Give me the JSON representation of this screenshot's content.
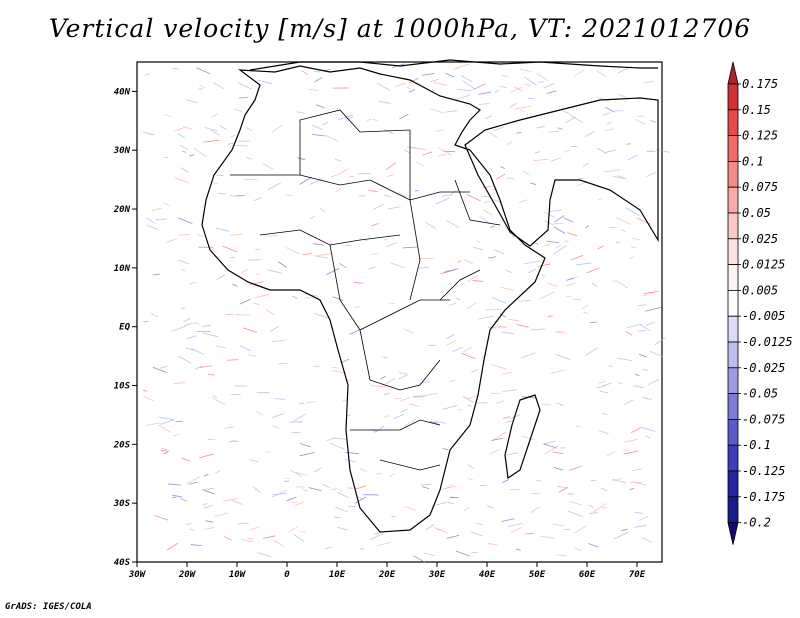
{
  "title": "Vertical velocity [m/s] at 1000hPa, VT: 2021012706",
  "footer": "GrADS: IGES/COLA",
  "map": {
    "lon_range": [
      -30,
      75
    ],
    "lat_range": [
      -40,
      45
    ],
    "lon_ticks": [
      "30W",
      "20W",
      "10W",
      "0",
      "10E",
      "20E",
      "30E",
      "40E",
      "50E",
      "60E",
      "70E"
    ],
    "lat_ticks": [
      "40N",
      "30N",
      "20N",
      "10N",
      "EQ",
      "10S",
      "20S",
      "30S",
      "40S"
    ]
  },
  "colorbar": {
    "labels": [
      "0.175",
      "0.15",
      "0.125",
      "0.1",
      "0.075",
      "0.05",
      "0.025",
      "0.0125",
      "0.005",
      "-0.005",
      "-0.0125",
      "-0.025",
      "-0.05",
      "-0.075",
      "-0.1",
      "-0.125",
      "-0.175",
      "-0.2"
    ],
    "colors": [
      "#b2202a",
      "#d42f35",
      "#e64a4c",
      "#f06a68",
      "#f58b88",
      "#f8aaa7",
      "#fbc8c6",
      "#fde2e1",
      "#fff2f2",
      "#ffffff",
      "#dcdcf6",
      "#bdbdee",
      "#9c9ce3",
      "#7c7cd8",
      "#5b5bcb",
      "#3d3dbb",
      "#2525a6",
      "#1a1a8f",
      "#140a7a"
    ]
  }
}
